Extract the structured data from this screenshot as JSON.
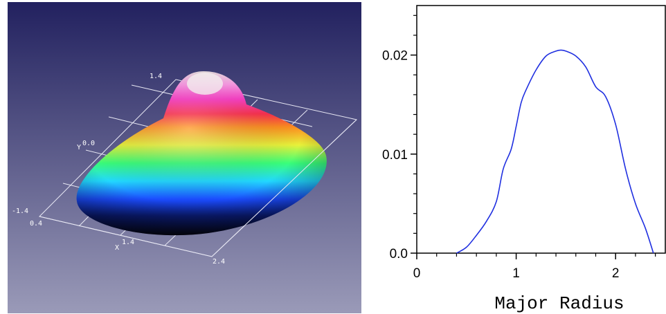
{
  "surface_plot": {
    "axis_labels": {
      "x": "X",
      "y": "Y"
    },
    "tick_labels": {
      "z_top": "1.4",
      "y_mid": "0.0",
      "y_left": "-1.4",
      "x_start": "0.4",
      "x_mid": "1.4",
      "x_end": "2.4"
    },
    "colors": {
      "background_top": "#22215f",
      "background_bottom": "#9a9ab8",
      "grid": "#e8e8f4"
    }
  },
  "chart_data": {
    "type": "line",
    "xlabel": "Major Radius",
    "ylabel": "",
    "xlim": [
      0,
      2.5
    ],
    "ylim": [
      0,
      0.025
    ],
    "xticks": [
      0,
      1,
      2
    ],
    "xtick_labels": [
      "0",
      "1",
      "2"
    ],
    "yticks": [
      0,
      0.01,
      0.02
    ],
    "ytick_labels": [
      "0.0",
      "0.01",
      "0.02"
    ],
    "line_color": "#1f2fe0",
    "series": [
      {
        "x": [
          0.4,
          0.5,
          0.6,
          0.7,
          0.8,
          0.87,
          0.95,
          1.0,
          1.05,
          1.1,
          1.2,
          1.3,
          1.4,
          1.45,
          1.5,
          1.6,
          1.7,
          1.8,
          1.9,
          2.0,
          2.1,
          2.2,
          2.3,
          2.38
        ],
        "y": [
          0.0,
          0.0006,
          0.0018,
          0.0032,
          0.0052,
          0.0085,
          0.0105,
          0.0128,
          0.0152,
          0.0165,
          0.0185,
          0.0199,
          0.0204,
          0.0205,
          0.0204,
          0.0199,
          0.0188,
          0.0168,
          0.0158,
          0.013,
          0.0085,
          0.005,
          0.0025,
          0.0
        ]
      }
    ],
    "grid": false
  }
}
